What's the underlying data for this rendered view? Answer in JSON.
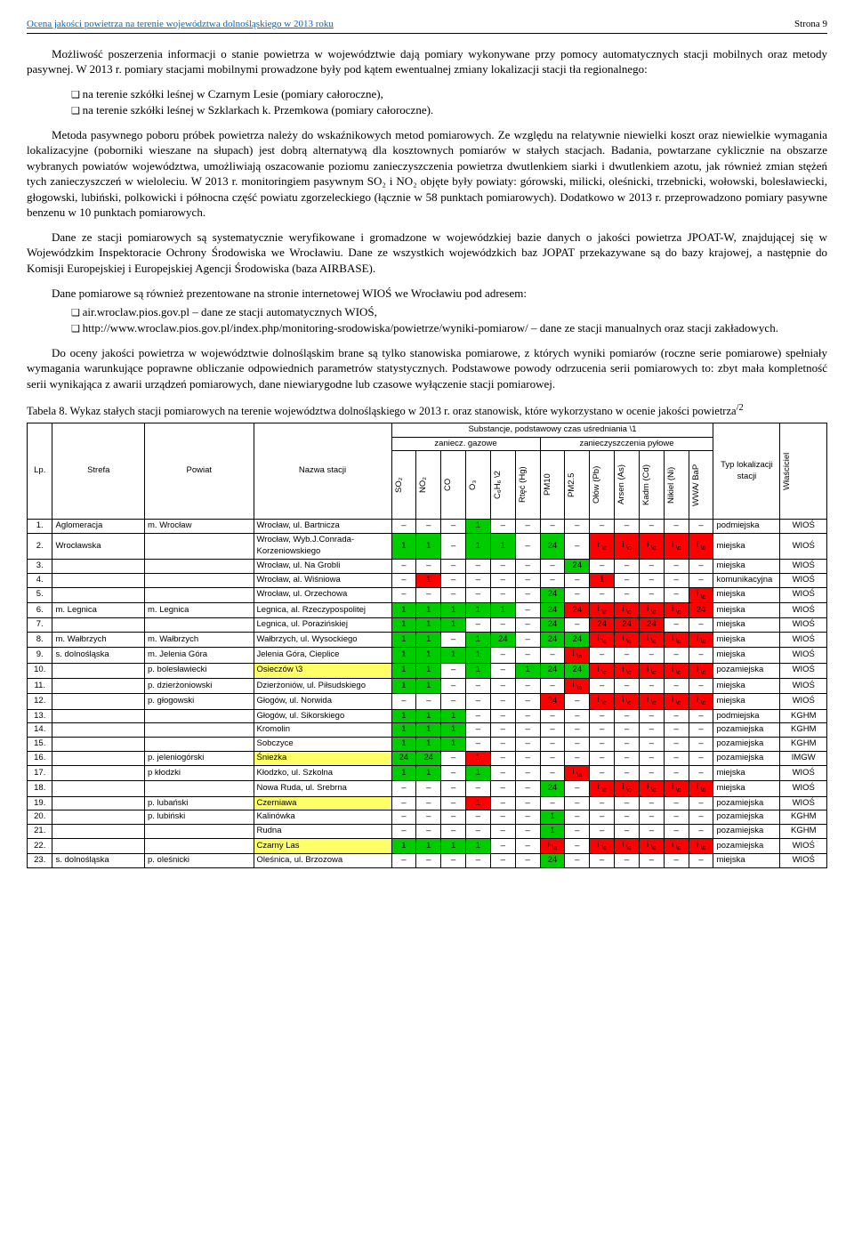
{
  "header": {
    "title": "Ocena jakości powietrza na terenie województwa dolnośląskiego w 2013 roku",
    "page": "Strona 9"
  },
  "paragraphs": {
    "p1": "Możliwość poszerzenia informacji o stanie powietrza w województwie dają pomiary wykonywane przy pomocy automatycznych stacji mobilnych oraz metody pasywnej. W 2013 r. pomiary stacjami mobilnymi prowadzone były pod kątem ewentualnej zmiany lokalizacji stacji tła regionalnego:",
    "b1": "na terenie szkółki leśnej w Czarnym Lesie (pomiary całoroczne),",
    "b2": "na terenie szkółki leśnej w Szklarkach k. Przemkowa (pomiary całoroczne).",
    "p2": "Metoda pasywnego poboru próbek powietrza należy do wskaźnikowych metod pomiarowych. Ze względu na relatywnie niewielki koszt oraz niewielkie wymagania lokalizacyjne (poborniki wieszane na słupach) jest dobrą alternatywą dla kosztownych pomiarów w stałych stacjach. Badania, powtarzane cyklicznie na obszarze wybranych powiatów województwa, umożliwiają oszacowanie poziomu zanieczyszczenia powietrza dwutlenkiem siarki i dwutlenkiem azotu, jak również zmian stężeń tych zanieczyszczeń w wieloleciu. W 2013 r. monitoringiem pasywnym SO₂ i NO₂ objęte były powiaty: górowski, milicki, oleśnicki, trzebnicki, wołowski, bolesławiecki, głogowski, lubiński, polkowicki i północna część powiatu zgorzeleckiego (łącznie w 58 punktach pomiarowych). Dodatkowo w 2013 r. przeprowadzono pomiary pasywne benzenu w 10 punktach pomiarowych.",
    "p3": "Dane ze stacji pomiarowych są systematycznie weryfikowane i gromadzone w wojewódzkiej bazie danych o jakości powietrza JPOAT-W, znajdującej się w Wojewódzkim Inspektoracie Ochrony Środowiska we Wrocławiu. Dane ze wszystkich wojewódzkich baz JOPAT przekazywane są do bazy krajowej, a następnie do Komisji Europejskiej i Europejskiej Agencji Środowiska (baza AIRBASE).",
    "p4": "Dane pomiarowe są również prezentowane na stronie internetowej WIOŚ we Wrocławiu pod adresem:",
    "b3": "air.wroclaw.pios.gov.pl – dane ze stacji automatycznych WIOŚ,",
    "b4": "http://www.wroclaw.pios.gov.pl/index.php/monitoring-srodowiska/powietrze/wyniki-pomiarow/ – dane ze stacji manualnych oraz stacji zakładowych.",
    "p5": "Do oceny jakości powietrza w województwie dolnośląskim brane są tylko stanowiska pomiarowe, z których wyniki pomiarów (roczne serie pomiarowe) spełniały wymagania warunkujące poprawne obliczanie odpowiednich parametrów statystycznych. Podstawowe powody odrzucenia serii pomiarowych to: zbyt mała kompletność serii wynikająca z awarii urządzeń pomiarowych, dane niewiarygodne lub czasowe wyłączenie stacji pomiarowej."
  },
  "tableCaption": "Tabela 8. Wykaz stałych stacji pomiarowych na terenie województwa dolnośląskiego w 2013 r. oraz stanowisk, które wykorzystano w ocenie jakości powietrza",
  "tableCaptionSup": "/2",
  "thead": {
    "sub_header": "Substancje, podstawowy czas uśredniania \\1",
    "gas": "zaniecz. gazowe",
    "dust": "zanieczyszczenia pyłowe",
    "lp": "Lp.",
    "strefa": "Strefa",
    "powiat": "Powiat",
    "nazwa": "Nazwa stacji",
    "typ": "Typ lokalizacji stacji",
    "wl": "Właściciel",
    "cols": [
      "SO₂",
      "NO₂",
      "CO",
      "O₃",
      "C₆H₆ \\2",
      "Rtęć (Hg)",
      "PM10",
      "PM2.5",
      "Ołów (Pb)",
      "Arsen (As)",
      "Kadm (Cd)",
      "Nikiel (Ni)",
      "WWA/ BaP"
    ]
  },
  "rows": [
    {
      "lp": "1.",
      "strefa": "Aglomeracja",
      "powiat": "m. Wrocław",
      "nazwa": "Wrocław, ul. Bartnicza",
      "c": [
        "–",
        "–",
        "–",
        "1g",
        "–",
        "–",
        "–",
        "–",
        "–",
        "–",
        "–",
        "–",
        "–"
      ],
      "typ": "podmiejska",
      "wl": "WIOŚ"
    },
    {
      "lp": "2.",
      "strefa": "Wrocławska",
      "powiat": "",
      "nazwa": "Wrocław, Wyb.J.Conrada-Korzeniowskiego",
      "c": [
        "1g",
        "1g",
        "–",
        "1g",
        "1g",
        "–",
        "24g",
        "–",
        "ir",
        "ir",
        "ir",
        "ir",
        "ir"
      ],
      "typ": "miejska",
      "wl": "WIOŚ"
    },
    {
      "lp": "3.",
      "strefa": "",
      "powiat": "",
      "nazwa": "Wrocław, ul. Na Grobli",
      "c": [
        "–",
        "–",
        "–",
        "–",
        "–",
        "–",
        "–",
        "24g",
        "–",
        "–",
        "–",
        "–",
        "–"
      ],
      "typ": "miejska",
      "wl": "WIOŚ"
    },
    {
      "lp": "4.",
      "strefa": "",
      "powiat": "",
      "nazwa": "Wrocław, al. Wiśniowa",
      "c": [
        "–",
        "1r",
        "–",
        "–",
        "–",
        "–",
        "–",
        "–",
        "1r",
        "–",
        "–",
        "–",
        "–"
      ],
      "typ": "komunikacyjna",
      "wl": "WIOŚ"
    },
    {
      "lp": "5.",
      "strefa": "",
      "powiat": "",
      "nazwa": "Wrocław, ul. Orzechowa",
      "c": [
        "–",
        "–",
        "–",
        "–",
        "–",
        "–",
        "24g",
        "–",
        "–",
        "–",
        "–",
        "–",
        "ir"
      ],
      "typ": "miejska",
      "wl": "WIOŚ"
    },
    {
      "lp": "6.",
      "strefa": "m. Legnica",
      "powiat": "m. Legnica",
      "nazwa": "Legnica, al. Rzeczypospolitej",
      "c": [
        "1g",
        "1g",
        "1g",
        "1g",
        "1g",
        "–",
        "24g",
        "24r",
        "ir",
        "ir",
        "ir",
        "ir",
        "24r"
      ],
      "typ": "miejska",
      "wl": "WIOŚ"
    },
    {
      "lp": "7.",
      "strefa": "",
      "powiat": "",
      "nazwa": "Legnica, ul. Porazińskiej",
      "c": [
        "1g",
        "1g",
        "1g",
        "–",
        "–",
        "–",
        "24g",
        "–",
        "24r",
        "24r",
        "24r",
        "–",
        "–"
      ],
      "typ": "miejska",
      "wl": "WIOŚ"
    },
    {
      "lp": "8.",
      "strefa": "m. Wałbrzych",
      "powiat": "m. Wałbrzych",
      "nazwa": "Wałbrzych, ul. Wysockiego",
      "c": [
        "1g",
        "1g",
        "–",
        "1g",
        "24g",
        "–",
        "24g",
        "24g",
        "ir",
        "ir",
        "ir",
        "ir",
        "ir"
      ],
      "typ": "miejska",
      "wl": "WIOŚ"
    },
    {
      "lp": "9.",
      "strefa": "s. dolnośląska",
      "powiat": "m. Jelenia Góra",
      "nazwa": "Jelenia Góra, Cieplice",
      "c": [
        "1g",
        "1g",
        "1g",
        "1g",
        "–",
        "–",
        "–",
        "iar",
        "–",
        "–",
        "–",
        "–",
        "–"
      ],
      "typ": "miejska",
      "wl": "WIOŚ"
    },
    {
      "lp": "10.",
      "strefa": "",
      "powiat": "p. bolesławiecki",
      "nazwa": "Osieczów \\3",
      "nazwaCls": "yellow",
      "c": [
        "1g",
        "1g",
        "–",
        "1g",
        "–",
        "1g",
        "24g",
        "24g",
        "ir",
        "ir",
        "ir",
        "ir",
        "ir"
      ],
      "typ": "pozamiejska",
      "wl": "WIOŚ"
    },
    {
      "lp": "11.",
      "strefa": "",
      "powiat": "p. dzierżoniowski",
      "nazwa": "Dzierżoniów, ul. Piłsudskiego",
      "c": [
        "1g",
        "1g",
        "–",
        "–",
        "–",
        "–",
        "–",
        "iar",
        "–",
        "–",
        "–",
        "–",
        "–"
      ],
      "typ": "miejska",
      "wl": "WIOŚ"
    },
    {
      "lp": "12.",
      "strefa": "",
      "powiat": "p. głogowski",
      "nazwa": "Głogów, ul. Norwida",
      "c": [
        "–",
        "–",
        "–",
        "–",
        "–",
        "–",
        "24r",
        "–",
        "ir",
        "ir",
        "ir",
        "ir",
        "ir"
      ],
      "typ": "miejska",
      "wl": "WIOŚ"
    },
    {
      "lp": "13.",
      "strefa": "",
      "powiat": "",
      "nazwa": "Głogów, ul. Sikorskiego",
      "c": [
        "1g",
        "1g",
        "1g",
        "–",
        "–",
        "–",
        "–",
        "–",
        "–",
        "–",
        "–",
        "–",
        "–"
      ],
      "typ": "podmiejska",
      "wl": "KGHM"
    },
    {
      "lp": "14.",
      "strefa": "",
      "powiat": "",
      "nazwa": "Kromolin",
      "c": [
        "1g",
        "1g",
        "1g",
        "–",
        "–",
        "–",
        "–",
        "–",
        "–",
        "–",
        "–",
        "–",
        "–"
      ],
      "typ": "pozamiejska",
      "wl": "KGHM"
    },
    {
      "lp": "15.",
      "strefa": "",
      "powiat": "",
      "nazwa": "Sobczyce",
      "c": [
        "1g",
        "1g",
        "1g",
        "–",
        "–",
        "–",
        "–",
        "–",
        "–",
        "–",
        "–",
        "–",
        "–"
      ],
      "typ": "pozamiejska",
      "wl": "KGHM"
    },
    {
      "lp": "16.",
      "strefa": "",
      "powiat": "p. jeleniogórski",
      "nazwa": "Śnieżka",
      "nazwaCls": "yellow",
      "c": [
        "24g",
        "24g",
        "–",
        "1r",
        "–",
        "–",
        "–",
        "–",
        "–",
        "–",
        "–",
        "–",
        "–"
      ],
      "typ": "pozamiejska",
      "wl": "IMGW"
    },
    {
      "lp": "17.",
      "strefa": "",
      "powiat": "p kłodzki",
      "nazwa": "Kłodzko, ul. Szkolna",
      "c": [
        "1g",
        "1g",
        "–",
        "1g",
        "–",
        "–",
        "–",
        "iar",
        "–",
        "–",
        "–",
        "–",
        "–"
      ],
      "typ": "miejska",
      "wl": "WIOŚ"
    },
    {
      "lp": "18.",
      "strefa": "",
      "powiat": "",
      "nazwa": "Nowa Ruda, ul. Srebrna",
      "c": [
        "–",
        "–",
        "–",
        "–",
        "–",
        "–",
        "24g",
        "–",
        "ir",
        "ir",
        "ir",
        "ir",
        "ir"
      ],
      "typ": "miejska",
      "wl": "WIOŚ"
    },
    {
      "lp": "19.",
      "strefa": "",
      "powiat": "p. lubański",
      "nazwa": "Czerniawa",
      "nazwaCls": "yellow",
      "c": [
        "–",
        "–",
        "–",
        "1r",
        "–",
        "–",
        "–",
        "–",
        "–",
        "–",
        "–",
        "–",
        "–"
      ],
      "typ": "pozamiejska",
      "wl": "WIOŚ"
    },
    {
      "lp": "20.",
      "strefa": "",
      "powiat": "p. lubiński",
      "nazwa": "Kalinówka",
      "c": [
        "–",
        "–",
        "–",
        "–",
        "–",
        "–",
        "1g",
        "–",
        "–",
        "–",
        "–",
        "–",
        "–"
      ],
      "typ": "pozamiejska",
      "wl": "KGHM"
    },
    {
      "lp": "21.",
      "strefa": "",
      "powiat": "",
      "nazwa": "Rudna",
      "c": [
        "–",
        "–",
        "–",
        "–",
        "–",
        "–",
        "1g",
        "–",
        "–",
        "–",
        "–",
        "–",
        "–"
      ],
      "typ": "pozamiejska",
      "wl": "KGHM"
    },
    {
      "lp": "22.",
      "strefa": "",
      "powiat": "",
      "nazwa": "Czarny Las",
      "nazwaCls": "yellow",
      "c": [
        "1g",
        "1g",
        "1g",
        "1g",
        "–",
        "–",
        "iar",
        "–",
        "ir",
        "ir",
        "ir",
        "ir",
        "ir"
      ],
      "typ": "pozamiejska",
      "wl": "WIOŚ"
    },
    {
      "lp": "23.",
      "strefa": "s. dolnośląska",
      "powiat": "p. oleśnicki",
      "nazwa": "Oleśnica, ul. Brzozowa",
      "c": [
        "–",
        "–",
        "–",
        "–",
        "–",
        "–",
        "24g",
        "–",
        "–",
        "–",
        "–",
        "–",
        "–"
      ],
      "typ": "miejska",
      "wl": "WIOŚ"
    }
  ],
  "cellStyles": {
    "1g": {
      "text": "1",
      "cls": "green"
    },
    "1r": {
      "text": "1",
      "cls": "red"
    },
    "24g": {
      "text": "24",
      "cls": "green"
    },
    "24r": {
      "text": "24",
      "cls": "red"
    },
    "ir": {
      "text": "i \\c",
      "cls": "red"
    },
    "iar": {
      "text": "i \\a",
      "cls": "red"
    },
    "–": {
      "text": "–",
      "cls": ""
    }
  }
}
